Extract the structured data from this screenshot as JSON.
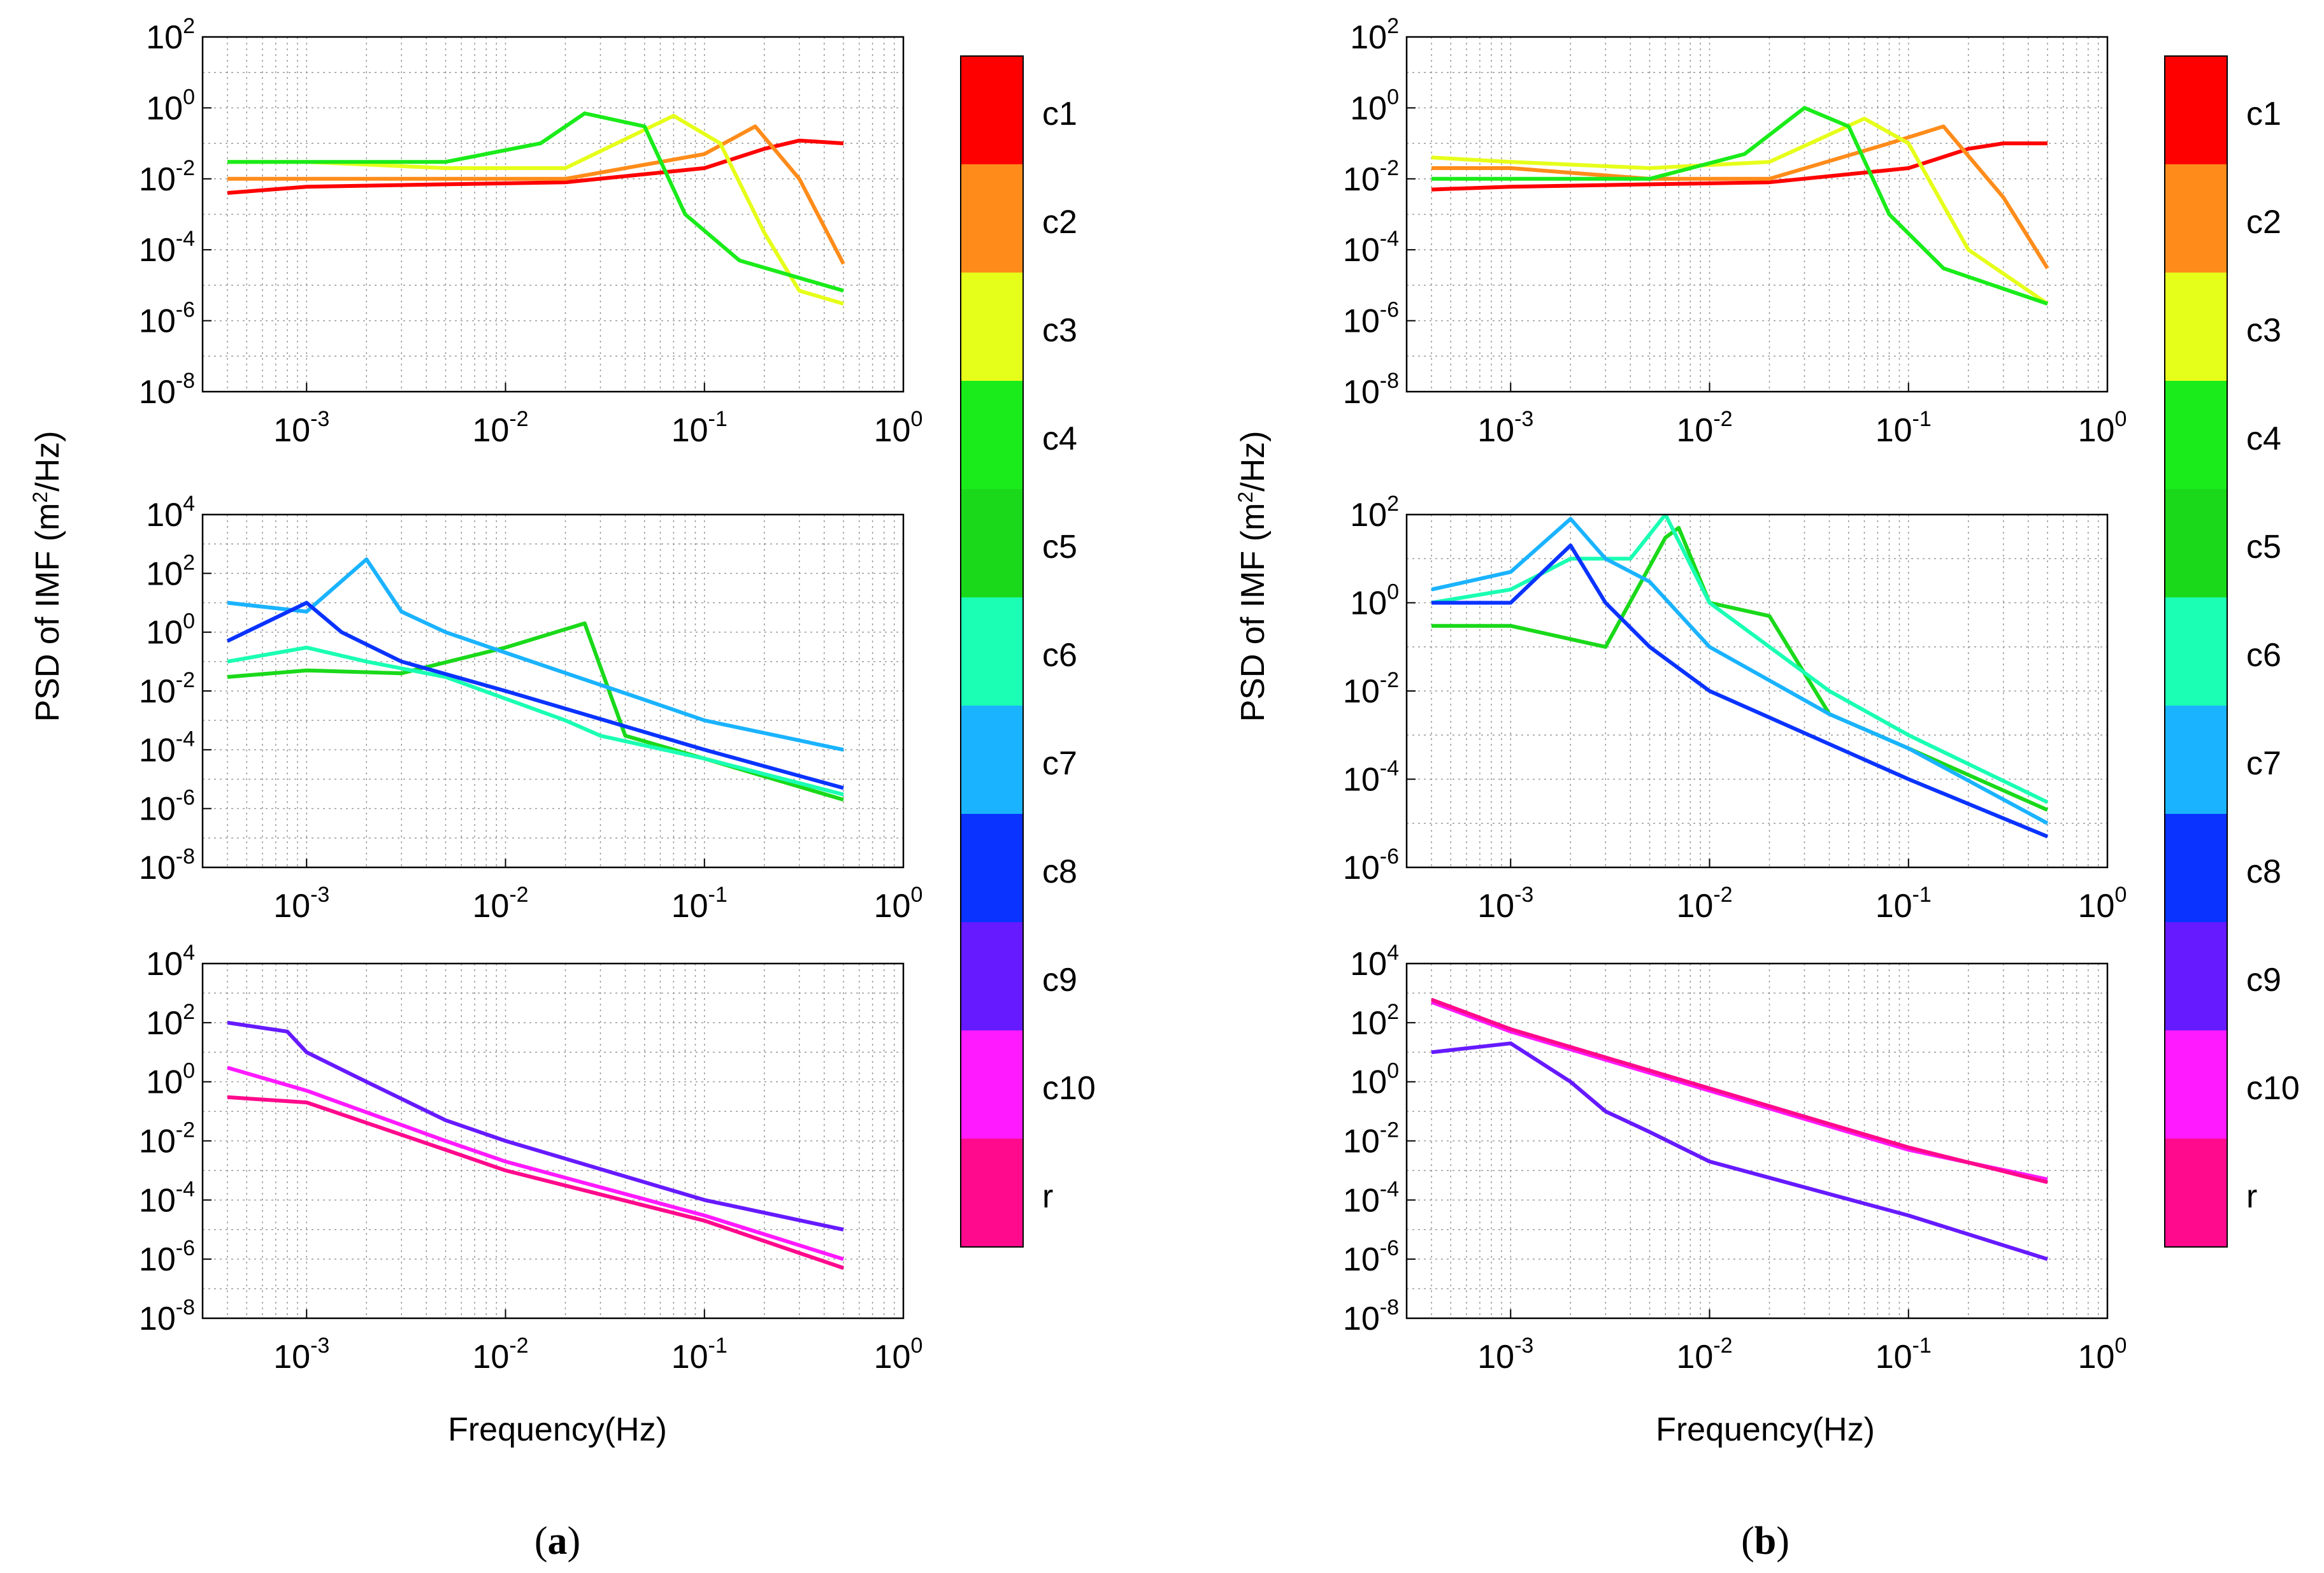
{
  "figure": {
    "axis_label_y": "PSD of IMF (m",
    "axis_label_y_sup": "2",
    "axis_label_y_tail": "/Hz)",
    "axis_label_x": "Frequency(Hz)",
    "tick_base": "10",
    "panel_labels": [
      {
        "open": "(",
        "letter": "a",
        "close": ")"
      },
      {
        "open": "(",
        "letter": "b",
        "close": ")"
      }
    ]
  },
  "colorbar": {
    "labels": [
      "c1",
      "c2",
      "c3",
      "c4",
      "c5",
      "c6",
      "c7",
      "c8",
      "c9",
      "c10",
      "r"
    ],
    "colors": [
      "#ff0000",
      "#ff8c1a",
      "#e6ff1a",
      "#1aeb1a",
      "#1ad91a",
      "#1affb3",
      "#1ab3ff",
      "#0a33ff",
      "#661aff",
      "#ff1aff",
      "#ff0a8c"
    ]
  },
  "chart_data": [
    {
      "type": "line",
      "panel": "a",
      "row": 1,
      "title": "",
      "xscale": "log",
      "yscale": "log",
      "xlim": [
        0.0003,
        1
      ],
      "ylim": [
        1e-08,
        100
      ],
      "xticks_exp": [
        "-3",
        "-2",
        "-1",
        "0"
      ],
      "yticks_exp": [
        "-8",
        "-6",
        "-4",
        "-2",
        "0",
        "2"
      ],
      "xlabel": "",
      "ylabel": "",
      "series": [
        {
          "name": "c1",
          "color": "#ff0000",
          "x": [
            0.0004,
            0.001,
            0.005,
            0.02,
            0.1,
            0.2,
            0.3,
            0.5
          ],
          "y": [
            0.004,
            0.006,
            0.007,
            0.008,
            0.02,
            0.07,
            0.12,
            0.1
          ]
        },
        {
          "name": "c2",
          "color": "#ff8c1a",
          "x": [
            0.0004,
            0.001,
            0.005,
            0.02,
            0.1,
            0.18,
            0.3,
            0.5
          ],
          "y": [
            0.01,
            0.01,
            0.01,
            0.01,
            0.05,
            0.3,
            0.01,
            4e-05
          ]
        },
        {
          "name": "c3",
          "color": "#e6ff1a",
          "x": [
            0.0004,
            0.001,
            0.005,
            0.02,
            0.07,
            0.12,
            0.2,
            0.3,
            0.5
          ],
          "y": [
            0.03,
            0.03,
            0.02,
            0.02,
            0.6,
            0.1,
            0.0003,
            7e-06,
            3e-06
          ]
        },
        {
          "name": "c4",
          "color": "#1aeb1a",
          "x": [
            0.0004,
            0.001,
            0.005,
            0.015,
            0.025,
            0.05,
            0.08,
            0.15,
            0.5
          ],
          "y": [
            0.03,
            0.03,
            0.03,
            0.1,
            0.7,
            0.3,
            0.001,
            5e-05,
            7e-06
          ]
        }
      ]
    },
    {
      "type": "line",
      "panel": "a",
      "row": 2,
      "title": "",
      "xscale": "log",
      "yscale": "log",
      "xlim": [
        0.0003,
        1
      ],
      "ylim": [
        1e-08,
        10000
      ],
      "xticks_exp": [
        "-3",
        "-2",
        "-1",
        "0"
      ],
      "yticks_exp": [
        "-8",
        "-6",
        "-4",
        "-2",
        "0",
        "2",
        "4"
      ],
      "xlabel": "",
      "ylabel": "",
      "series": [
        {
          "name": "c5",
          "color": "#1ad91a",
          "x": [
            0.0004,
            0.001,
            0.003,
            0.01,
            0.025,
            0.04,
            0.1,
            0.5
          ],
          "y": [
            0.03,
            0.05,
            0.04,
            0.3,
            2,
            0.0003,
            5e-05,
            2e-06
          ]
        },
        {
          "name": "c6",
          "color": "#1affb3",
          "x": [
            0.0004,
            0.001,
            0.002,
            0.005,
            0.02,
            0.03,
            0.1,
            0.5
          ],
          "y": [
            0.1,
            0.3,
            0.1,
            0.03,
            0.001,
            0.0003,
            5e-05,
            3e-06
          ]
        },
        {
          "name": "c7",
          "color": "#1ab3ff",
          "x": [
            0.0004,
            0.001,
            0.002,
            0.003,
            0.005,
            0.01,
            0.05,
            0.1,
            0.5
          ],
          "y": [
            10,
            5,
            300,
            5,
            1,
            0.2,
            0.005,
            0.001,
            0.0001
          ]
        },
        {
          "name": "c8",
          "color": "#0a33ff",
          "x": [
            0.0004,
            0.001,
            0.0015,
            0.003,
            0.01,
            0.1,
            0.5
          ],
          "y": [
            0.5,
            10,
            1,
            0.1,
            0.01,
            0.0001,
            5e-06
          ]
        }
      ]
    },
    {
      "type": "line",
      "panel": "a",
      "row": 3,
      "title": "",
      "xscale": "log",
      "yscale": "log",
      "xlim": [
        0.0003,
        1
      ],
      "ylim": [
        1e-08,
        10000
      ],
      "xticks_exp": [
        "-3",
        "-2",
        "-1",
        "0"
      ],
      "yticks_exp": [
        "-8",
        "-6",
        "-4",
        "-2",
        "0",
        "2",
        "4"
      ],
      "xlabel": "Frequency(Hz)",
      "ylabel": "",
      "series": [
        {
          "name": "c9",
          "color": "#661aff",
          "x": [
            0.0004,
            0.0008,
            0.001,
            0.002,
            0.005,
            0.01,
            0.1,
            0.5
          ],
          "y": [
            100,
            50,
            10,
            1,
            0.05,
            0.01,
            0.0001,
            1e-05
          ]
        },
        {
          "name": "c10",
          "color": "#ff1aff",
          "x": [
            0.0004,
            0.001,
            0.005,
            0.01,
            0.1,
            0.5
          ],
          "y": [
            3,
            0.5,
            0.01,
            0.002,
            3e-05,
            1e-06
          ]
        },
        {
          "name": "r",
          "color": "#ff0a8c",
          "x": [
            0.0004,
            0.001,
            0.005,
            0.01,
            0.1,
            0.5
          ],
          "y": [
            0.3,
            0.2,
            0.005,
            0.001,
            2e-05,
            5e-07
          ]
        }
      ]
    },
    {
      "type": "line",
      "panel": "b",
      "row": 1,
      "title": "",
      "xscale": "log",
      "yscale": "log",
      "xlim": [
        0.0003,
        1
      ],
      "ylim": [
        1e-08,
        100
      ],
      "xticks_exp": [
        "-3",
        "-2",
        "-1",
        "0"
      ],
      "yticks_exp": [
        "-8",
        "-6",
        "-4",
        "-2",
        "0",
        "2"
      ],
      "xlabel": "",
      "ylabel": "",
      "series": [
        {
          "name": "c1",
          "color": "#ff0000",
          "x": [
            0.0004,
            0.001,
            0.005,
            0.02,
            0.1,
            0.2,
            0.3,
            0.5
          ],
          "y": [
            0.005,
            0.006,
            0.007,
            0.008,
            0.02,
            0.07,
            0.1,
            0.1
          ]
        },
        {
          "name": "c2",
          "color": "#ff8c1a",
          "x": [
            0.0004,
            0.001,
            0.005,
            0.02,
            0.08,
            0.15,
            0.3,
            0.5
          ],
          "y": [
            0.02,
            0.02,
            0.01,
            0.01,
            0.1,
            0.3,
            0.003,
            3e-05
          ]
        },
        {
          "name": "c3",
          "color": "#e6ff1a",
          "x": [
            0.0004,
            0.001,
            0.005,
            0.02,
            0.06,
            0.1,
            0.2,
            0.5
          ],
          "y": [
            0.04,
            0.03,
            0.02,
            0.03,
            0.5,
            0.1,
            0.0001,
            3e-06
          ]
        },
        {
          "name": "c4",
          "color": "#1aeb1a",
          "x": [
            0.0004,
            0.001,
            0.005,
            0.015,
            0.03,
            0.05,
            0.08,
            0.15,
            0.5
          ],
          "y": [
            0.01,
            0.01,
            0.01,
            0.05,
            1,
            0.3,
            0.001,
            3e-05,
            3e-06
          ]
        }
      ]
    },
    {
      "type": "line",
      "panel": "b",
      "row": 2,
      "title": "",
      "xscale": "log",
      "yscale": "log",
      "xlim": [
        0.0003,
        1
      ],
      "ylim": [
        1e-06,
        100
      ],
      "xticks_exp": [
        "-3",
        "-2",
        "-1",
        "0"
      ],
      "yticks_exp": [
        "-6",
        "-4",
        "-2",
        "0",
        "2"
      ],
      "xlabel": "",
      "ylabel": "",
      "series": [
        {
          "name": "c5",
          "color": "#1ad91a",
          "x": [
            0.0004,
            0.001,
            0.003,
            0.006,
            0.007,
            0.01,
            0.02,
            0.04,
            0.1,
            0.5
          ],
          "y": [
            0.3,
            0.3,
            0.1,
            30,
            50,
            1,
            0.5,
            0.003,
            0.0005,
            2e-05
          ]
        },
        {
          "name": "c6",
          "color": "#1affb3",
          "x": [
            0.0004,
            0.001,
            0.002,
            0.004,
            0.006,
            0.01,
            0.04,
            0.1,
            0.5
          ],
          "y": [
            1,
            2,
            10,
            10,
            100,
            1,
            0.01,
            0.001,
            3e-05
          ]
        },
        {
          "name": "c7",
          "color": "#1ab3ff",
          "x": [
            0.0004,
            0.001,
            0.002,
            0.003,
            0.005,
            0.01,
            0.04,
            0.1,
            0.5
          ],
          "y": [
            2,
            5,
            80,
            10,
            3,
            0.1,
            0.003,
            0.0005,
            1e-05
          ]
        },
        {
          "name": "c8",
          "color": "#0a33ff",
          "x": [
            0.0004,
            0.001,
            0.002,
            0.003,
            0.005,
            0.01,
            0.1,
            0.5
          ],
          "y": [
            1,
            1,
            20,
            1,
            0.1,
            0.01,
            0.0001,
            5e-06
          ]
        }
      ]
    },
    {
      "type": "line",
      "panel": "b",
      "row": 3,
      "title": "",
      "xscale": "log",
      "yscale": "log",
      "xlim": [
        0.0003,
        1
      ],
      "ylim": [
        1e-08,
        10000
      ],
      "xticks_exp": [
        "-3",
        "-2",
        "-1",
        "0"
      ],
      "yticks_exp": [
        "-8",
        "-6",
        "-4",
        "-2",
        "0",
        "2",
        "4"
      ],
      "xlabel": "Frequency(Hz)",
      "ylabel": "",
      "series": [
        {
          "name": "c9",
          "color": "#661aff",
          "x": [
            0.0004,
            0.001,
            0.002,
            0.003,
            0.005,
            0.01,
            0.1,
            0.5
          ],
          "y": [
            10,
            20,
            1,
            0.1,
            0.02,
            0.002,
            3e-05,
            1e-06
          ]
        },
        {
          "name": "c10",
          "color": "#ff1aff",
          "x": [
            0.0004,
            0.001,
            0.01,
            0.1,
            0.5
          ],
          "y": [
            500,
            50,
            0.5,
            0.005,
            0.0005
          ]
        },
        {
          "name": "r",
          "color": "#ff0a8c",
          "x": [
            0.0004,
            0.001,
            0.01,
            0.1,
            0.5
          ],
          "y": [
            600,
            60,
            0.6,
            0.006,
            0.0004
          ]
        }
      ]
    }
  ]
}
